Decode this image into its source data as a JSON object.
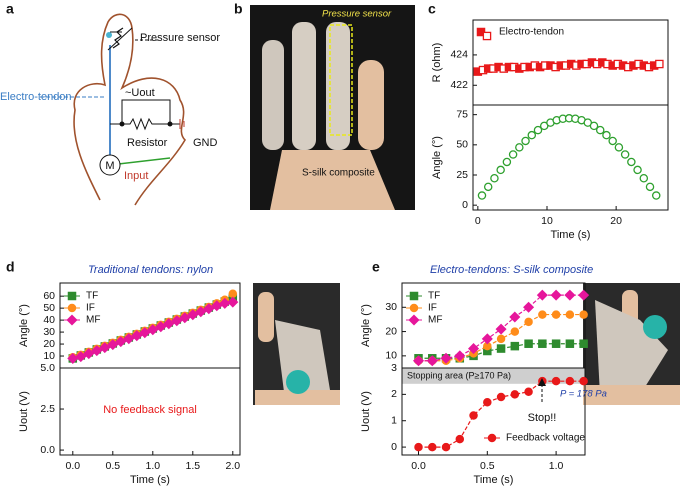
{
  "panel_labels": [
    "a",
    "b",
    "c",
    "d",
    "e"
  ],
  "diagram_a": {
    "pressure_sensor": "Pressure sensor",
    "electro_tendon": "Electro-tendon",
    "uout": "~Uout",
    "resistor": "Resistor",
    "gnd": "GND",
    "motor": "M",
    "input": "Input"
  },
  "photo_b": {
    "sensor": "Pressure sensor",
    "composite": "S-silk composite"
  },
  "chart_data": [
    {
      "type": "scatter",
      "ylabel": "R (ohm)",
      "xlim": [
        -0.7,
        27.5
      ],
      "ylim": [
        420.7,
        426.3
      ],
      "yticks": [
        422,
        424
      ],
      "legend": "upper left",
      "x": [
        0,
        0.75,
        1.5,
        2.25,
        3,
        3.75,
        4.5,
        5.25,
        6,
        6.75,
        7.5,
        8.25,
        9,
        9.75,
        10.5,
        11.25,
        12,
        12.75,
        13.5,
        14.25,
        15,
        15.75,
        16.5,
        17.25,
        18,
        18.75,
        19.5,
        20.25,
        21,
        21.75,
        22.5,
        23.25,
        24,
        24.75,
        25.5,
        26.25
      ],
      "series": [
        {
          "name": "Electro-tendon",
          "color": "#e8191a",
          "marker": "square",
          "markerfill": "alternating",
          "linestyle": "none",
          "values": [
            422.9,
            423.0,
            423.1,
            423.1,
            423.2,
            423.1,
            423.2,
            423.2,
            423.1,
            423.2,
            423.2,
            423.3,
            423.2,
            423.3,
            423.3,
            423.2,
            423.3,
            423.3,
            423.4,
            423.3,
            423.4,
            423.4,
            423.5,
            423.4,
            423.5,
            423.4,
            423.3,
            423.4,
            423.3,
            423.2,
            423.3,
            423.4,
            423.3,
            423.2,
            423.3,
            423.4
          ]
        }
      ]
    },
    {
      "type": "scatter",
      "ylabel": "Angle (°)",
      "xlabel": "Time (s)",
      "xlim": [
        -0.7,
        27.5
      ],
      "ylim": [
        -4,
        83
      ],
      "yticks": [
        0,
        25,
        50,
        75
      ],
      "xticks": [
        0,
        10,
        20
      ],
      "x": [
        0.6,
        1.5,
        2.4,
        3.3,
        4.2,
        5.1,
        6.0,
        6.9,
        7.8,
        8.7,
        9.6,
        10.5,
        11.4,
        12.3,
        13.2,
        14.1,
        15.0,
        15.9,
        16.8,
        17.7,
        18.6,
        19.5,
        20.4,
        21.3,
        22.2,
        23.1,
        24.0,
        24.9,
        25.8
      ],
      "series": [
        {
          "name": null,
          "color": "#2ea02e",
          "marker": "circle",
          "markerfill": "hollow",
          "linestyle": "none",
          "values": [
            8,
            15.2,
            22.3,
            29.2,
            35.8,
            42.0,
            47.9,
            53.2,
            58.0,
            62.2,
            65.7,
            68.4,
            70.4,
            71.6,
            72,
            71.6,
            70.4,
            68.4,
            65.7,
            62.2,
            58.0,
            53.2,
            47.9,
            42.0,
            35.8,
            29.2,
            22.3,
            15.2,
            8
          ]
        }
      ]
    },
    {
      "type": "line",
      "title": "Traditional tendons: nylon",
      "ylabel": "Angle (°)",
      "xlim": [
        -0.16,
        2.09
      ],
      "ylim": [
        0,
        71
      ],
      "yticks": [
        10,
        20,
        30,
        40,
        50,
        60
      ],
      "legend": "upper left",
      "x": [
        0,
        0.1,
        0.2,
        0.3,
        0.4,
        0.5,
        0.6,
        0.7,
        0.8,
        0.9,
        1.0,
        1.1,
        1.2,
        1.3,
        1.4,
        1.5,
        1.6,
        1.7,
        1.8,
        1.9,
        2.0
      ],
      "series": [
        {
          "name": "TF",
          "color": "#2e8b2e",
          "marker": "square",
          "markerfill": "filled",
          "linestyle": "dashed",
          "values": [
            8,
            10.5,
            13,
            15.5,
            18,
            20.5,
            23,
            25.5,
            28,
            30.5,
            33,
            35.5,
            38,
            40.5,
            43,
            45.5,
            48,
            50.5,
            53,
            55.5,
            58
          ]
        },
        {
          "name": "IF",
          "color": "#ff8c1a",
          "marker": "circle",
          "markerfill": "filled",
          "linestyle": "dashed",
          "values": [
            9,
            11,
            13.5,
            16,
            18.5,
            21,
            23.5,
            26,
            28.5,
            31,
            33.5,
            36,
            38.5,
            41,
            43.5,
            46,
            48.5,
            51,
            54,
            57,
            62
          ]
        },
        {
          "name": "MF",
          "color": "#e6169b",
          "marker": "diamond",
          "markerfill": "filled",
          "linestyle": "dashed",
          "values": [
            8,
            9.5,
            12,
            14.5,
            17,
            19.5,
            22,
            24.5,
            27,
            29.5,
            32,
            34.5,
            37,
            39.5,
            42,
            44.5,
            47,
            49.5,
            52,
            54,
            55
          ]
        }
      ]
    },
    {
      "type": "line",
      "ylabel": "Uout (V)",
      "xlabel": "Time (s)",
      "xlim": [
        -0.16,
        2.09
      ],
      "ylim": [
        -0.3,
        5
      ],
      "yticks": [
        {
          "value": 0,
          "label": "0.0"
        },
        2.5,
        {
          "value": 5,
          "label": "5.0"
        }
      ],
      "xticks": [
        {
          "value": 0,
          "label": "0.0"
        },
        0.5,
        {
          "value": 1,
          "label": "1.0"
        },
        1.5,
        {
          "value": 2,
          "label": "2.0"
        }
      ],
      "annotations": [
        {
          "text": "No feedback signal",
          "color": "#e8191a"
        }
      ]
    },
    {
      "type": "line",
      "title": "Electro-tendons: S-silk composite",
      "ylabel": "Angle (°)",
      "xlim": [
        -0.12,
        1.21
      ],
      "ylim": [
        5,
        40
      ],
      "yticks": [
        10,
        20,
        30
      ],
      "legend": "upper left",
      "x": [
        0,
        0.1,
        0.2,
        0.3,
        0.4,
        0.5,
        0.6,
        0.7,
        0.8,
        0.9,
        1.0,
        1.1,
        1.2
      ],
      "series": [
        {
          "name": "TF",
          "color": "#2e8b2e",
          "marker": "square",
          "markerfill": "filled",
          "linestyle": "dashed",
          "values": [
            9,
            9,
            9,
            9,
            10,
            12,
            13,
            14,
            15,
            15,
            15,
            15,
            15
          ]
        },
        {
          "name": "IF",
          "color": "#ff8c1a",
          "marker": "circle",
          "markerfill": "filled",
          "linestyle": "dashed",
          "values": [
            8,
            8,
            8,
            9,
            11,
            14,
            17,
            20,
            24,
            27,
            27,
            27,
            27
          ]
        },
        {
          "name": "MF",
          "color": "#e6169b",
          "marker": "diamond",
          "markerfill": "filled",
          "linestyle": "dashed",
          "values": [
            8,
            8,
            9,
            10,
            13,
            17,
            21,
            26,
            30,
            35,
            35,
            35,
            35
          ]
        }
      ]
    },
    {
      "type": "line",
      "ylabel": "Uout (V)",
      "xlabel": "Time (s)",
      "xlim": [
        -0.12,
        1.21
      ],
      "ylim": [
        -0.3,
        3
      ],
      "yticks": [
        0,
        1,
        2,
        3
      ],
      "xticks": [
        {
          "value": 0,
          "label": "0.0"
        },
        0.5,
        {
          "value": 1,
          "label": "1.0"
        }
      ],
      "legend": "lower right",
      "band": {
        "from": 2.4,
        "to": 3,
        "label": "Stopping area (P≥170 Pa)"
      },
      "annotations": [
        {
          "text": "Stop!!",
          "color": "#111111"
        },
        {
          "text": "P = 178 Pa",
          "color": "#1f3fa8"
        }
      ],
      "x": [
        0,
        0.1,
        0.2,
        0.3,
        0.4,
        0.5,
        0.6,
        0.7,
        0.8,
        0.9,
        1.0,
        1.1,
        1.2
      ],
      "series": [
        {
          "name": "Feedback voltage",
          "color": "#e8191a",
          "marker": "circle",
          "markerfill": "filled",
          "linestyle": "dashed",
          "values": [
            0,
            0,
            0,
            0.3,
            1.2,
            1.7,
            1.9,
            2.0,
            2.1,
            2.5,
            2.5,
            2.5,
            2.5
          ]
        }
      ]
    }
  ]
}
